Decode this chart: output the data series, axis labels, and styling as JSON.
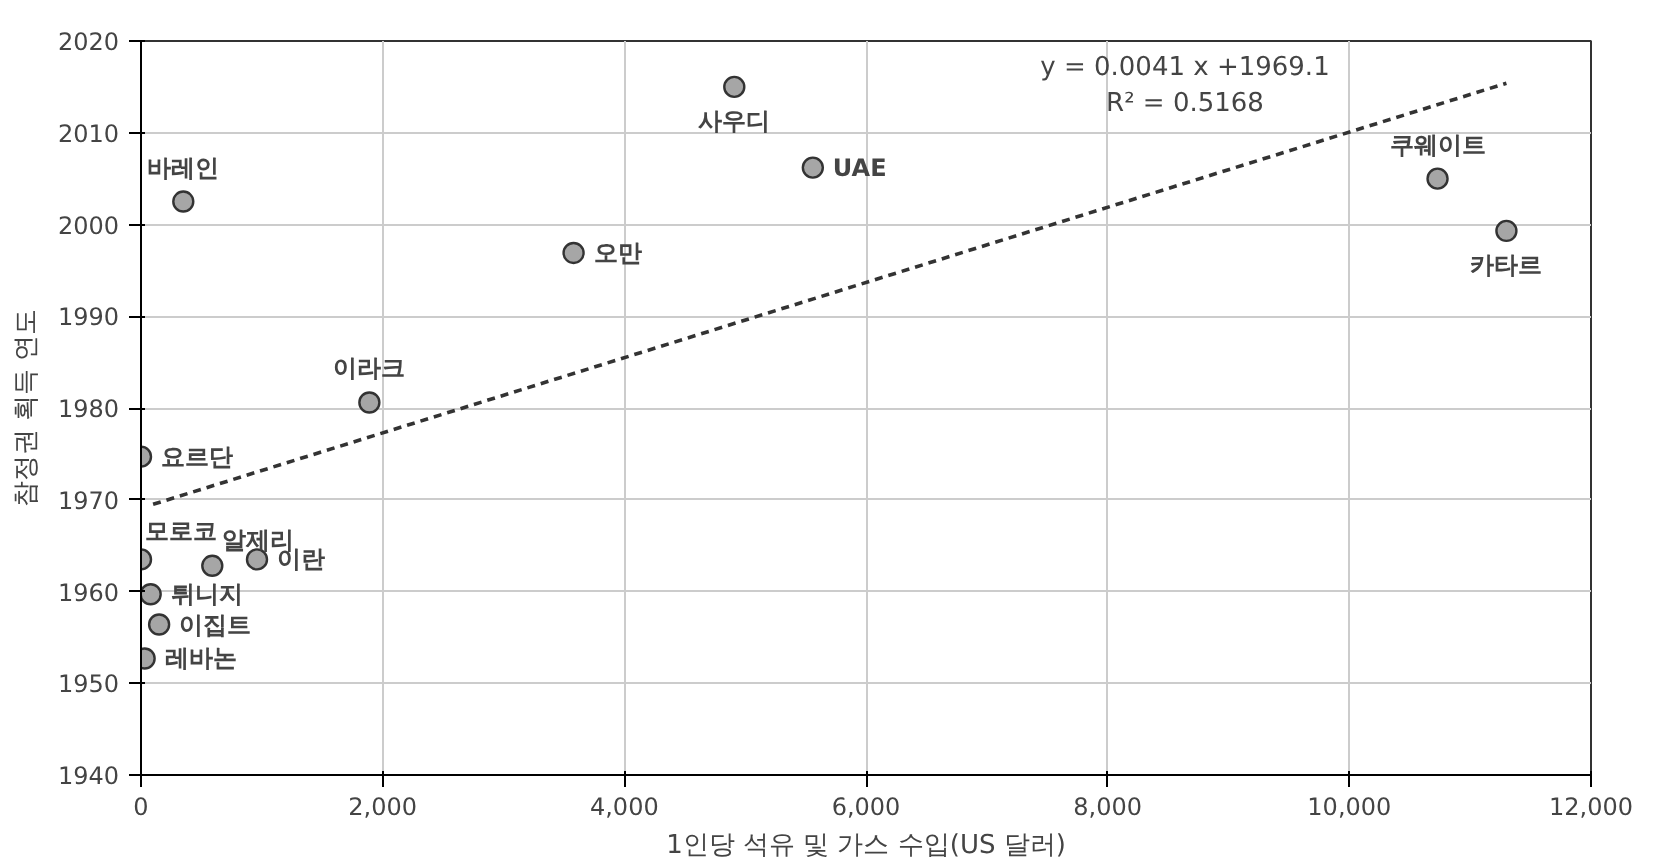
{
  "chart_data": {
    "type": "scatter",
    "xlabel": "1인당 석유 및 가스 수입(US 달러)",
    "ylabel": "참정권 획득 연도",
    "xlim": [
      0,
      12000
    ],
    "ylim": [
      1940,
      2020
    ],
    "xticks": [
      0,
      {
        "value": 2000,
        "label": "2,000"
      },
      {
        "value": 4000,
        "label": "4,000"
      },
      {
        "value": 6000,
        "label": "6,000"
      },
      {
        "value": 8000,
        "label": "8,000"
      },
      {
        "value": 10000,
        "label": "10,000"
      },
      {
        "value": 12000,
        "label": "12,000"
      }
    ],
    "yticks": [
      1940,
      1950,
      1960,
      1970,
      1980,
      1990,
      2000,
      2010,
      2020
    ],
    "grid": true,
    "marker": "circle",
    "annotations": [
      "y = 0.0041 x +1969.1",
      "R² = 0.5168"
    ],
    "series": [
      {
        "name": "요르단",
        "color": "#a6a6a6",
        "x": [
          0
        ],
        "values": [
          1974.7
        ]
      },
      {
        "name": "모로코",
        "color": "#a6a6a6",
        "x": [
          0
        ],
        "values": [
          1963.5
        ]
      },
      {
        "name": "알제리",
        "color": "#a6a6a6",
        "x": [
          590
        ],
        "values": [
          1962.8
        ]
      },
      {
        "name": "이란",
        "color": "#a6a6a6",
        "x": [
          960
        ],
        "values": [
          1963.5
        ]
      },
      {
        "name": "튀니지",
        "color": "#a6a6a6",
        "x": [
          80
        ],
        "values": [
          1959.7
        ]
      },
      {
        "name": "이집트",
        "color": "#a6a6a6",
        "x": [
          150
        ],
        "values": [
          1956.4
        ]
      },
      {
        "name": "레바논",
        "color": "#a6a6a6",
        "x": [
          30
        ],
        "values": [
          1952.7
        ]
      },
      {
        "name": "이라크",
        "color": "#a6a6a6",
        "x": [
          1890
        ],
        "values": [
          1980.6
        ]
      },
      {
        "name": "바레인",
        "color": "#a6a6a6",
        "x": [
          350
        ],
        "values": [
          2002.5
        ]
      },
      {
        "name": "오만",
        "color": "#a6a6a6",
        "x": [
          3580
        ],
        "values": [
          1996.9
        ]
      },
      {
        "name": "사우디",
        "color": "#a6a6a6",
        "x": [
          4910
        ],
        "values": [
          2015
        ]
      },
      {
        "name": "UAE",
        "color": "#a6a6a6",
        "x": [
          5560
        ],
        "values": [
          2006.2
        ]
      },
      {
        "name": "쿠웨이트",
        "color": "#a6a6a6",
        "x": [
          10730
        ],
        "values": [
          2005
        ]
      },
      {
        "name": "카타르",
        "color": "#a6a6a6",
        "x": [
          11300
        ],
        "values": [
          1999.3
        ]
      },
      {
        "type": "line",
        "color": "#333333",
        "line_style": "dashed",
        "marker": "none",
        "x": [
          100,
          11300
        ],
        "values": [
          1969.5,
          2015.4
        ]
      }
    ]
  }
}
